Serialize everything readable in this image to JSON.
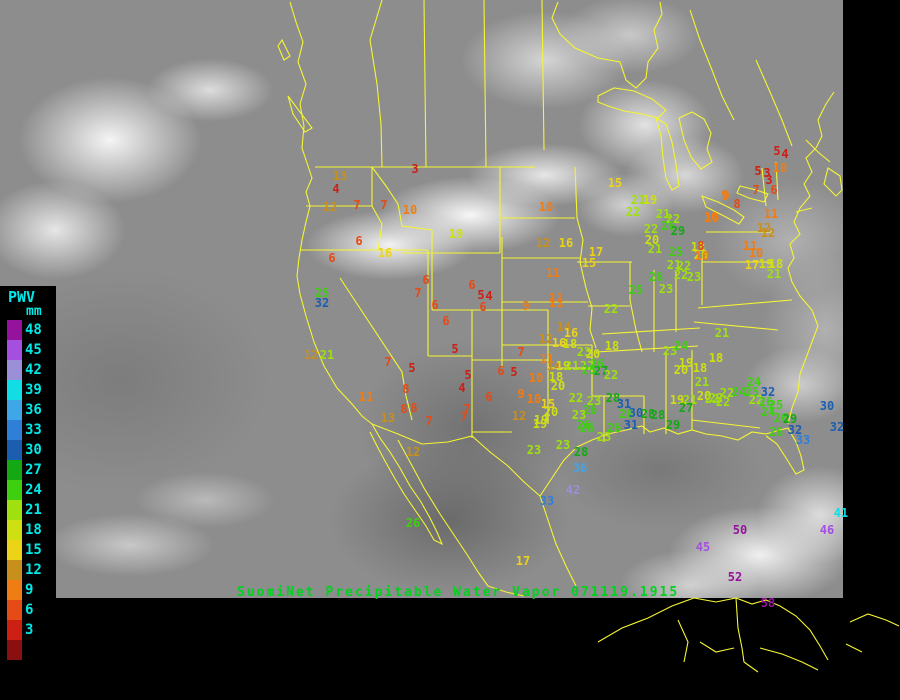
{
  "app": {
    "caption": "SuomiNet Precipitable Water Vapor 071119.1915"
  },
  "colorbar": {
    "title": "PWV",
    "unit": "mm",
    "label_color": "#00e8e8",
    "ticks_top_to_bottom": [
      "48",
      "45",
      "42",
      "39",
      "36",
      "33",
      "30",
      "27",
      "24",
      "21",
      "18",
      "15",
      "12",
      "9",
      "6",
      "3"
    ],
    "colors_low_to_high": [
      "#cc2014",
      "#e44b16",
      "#ef7d15",
      "#c78f1c",
      "#ecd318",
      "#cfe012",
      "#9fe00e",
      "#3ecf10",
      "#14a814",
      "#1b5eb0",
      "#2f7fd6",
      "#3fa6e8",
      "#12dce4",
      "#9b8fd8",
      "#a44fe0",
      "#94129c"
    ],
    "bottom_unlabeled_color": "#8a1010"
  },
  "map": {
    "outline_color": "#f5f532",
    "caption_color": "#00d21e"
  },
  "stations": [
    [
      415,
      169,
      3
    ],
    [
      340,
      176,
      13
    ],
    [
      336,
      189,
      4
    ],
    [
      330,
      207,
      12
    ],
    [
      357,
      205,
      7
    ],
    [
      384,
      205,
      7
    ],
    [
      410,
      210,
      10
    ],
    [
      456,
      234,
      19
    ],
    [
      359,
      241,
      6
    ],
    [
      385,
      253,
      16
    ],
    [
      332,
      258,
      6
    ],
    [
      322,
      293,
      25
    ],
    [
      322,
      303,
      32
    ],
    [
      426,
      280,
      6
    ],
    [
      418,
      293,
      7
    ],
    [
      435,
      305,
      6
    ],
    [
      446,
      321,
      6
    ],
    [
      472,
      285,
      6
    ],
    [
      481,
      295,
      5
    ],
    [
      489,
      296,
      4
    ],
    [
      483,
      307,
      6
    ],
    [
      455,
      349,
      5
    ],
    [
      412,
      368,
      5
    ],
    [
      388,
      362,
      7
    ],
    [
      468,
      375,
      5
    ],
    [
      462,
      388,
      4
    ],
    [
      489,
      397,
      6
    ],
    [
      406,
      389,
      8
    ],
    [
      366,
      397,
      11
    ],
    [
      404,
      409,
      8
    ],
    [
      414,
      408,
      8
    ],
    [
      388,
      418,
      13
    ],
    [
      429,
      421,
      7
    ],
    [
      467,
      409,
      7
    ],
    [
      464,
      417,
      7
    ],
    [
      311,
      355,
      12
    ],
    [
      327,
      355,
      21
    ],
    [
      526,
      306,
      9
    ],
    [
      556,
      303,
      11
    ],
    [
      611,
      309,
      22
    ],
    [
      564,
      327,
      14
    ],
    [
      571,
      333,
      16
    ],
    [
      546,
      339,
      12
    ],
    [
      559,
      343,
      16
    ],
    [
      570,
      344,
      18
    ],
    [
      521,
      352,
      7
    ],
    [
      547,
      359,
      11
    ],
    [
      584,
      352,
      23
    ],
    [
      593,
      354,
      20
    ],
    [
      554,
      366,
      14
    ],
    [
      563,
      366,
      19
    ],
    [
      572,
      366,
      21
    ],
    [
      587,
      366,
      22
    ],
    [
      597,
      364,
      26
    ],
    [
      601,
      371,
      27
    ],
    [
      589,
      370,
      25
    ],
    [
      611,
      375,
      22
    ],
    [
      501,
      371,
      6
    ],
    [
      514,
      372,
      5
    ],
    [
      536,
      378,
      10
    ],
    [
      556,
      377,
      18
    ],
    [
      558,
      386,
      20
    ],
    [
      521,
      394,
      9
    ],
    [
      534,
      399,
      10
    ],
    [
      548,
      404,
      15
    ],
    [
      576,
      398,
      22
    ],
    [
      594,
      401,
      23
    ],
    [
      590,
      410,
      26
    ],
    [
      551,
      412,
      20
    ],
    [
      579,
      415,
      23
    ],
    [
      519,
      416,
      12
    ],
    [
      541,
      420,
      19
    ],
    [
      584,
      425,
      26
    ],
    [
      604,
      437,
      23
    ],
    [
      615,
      183,
      15
    ],
    [
      546,
      207,
      10
    ],
    [
      543,
      243,
      12
    ],
    [
      566,
      243,
      16
    ],
    [
      596,
      252,
      17
    ],
    [
      589,
      263,
      15
    ],
    [
      553,
      273,
      11
    ],
    [
      556,
      298,
      11
    ],
    [
      638,
      200,
      21
    ],
    [
      650,
      200,
      19
    ],
    [
      633,
      212,
      22
    ],
    [
      663,
      214,
      21
    ],
    [
      673,
      219,
      22
    ],
    [
      651,
      229,
      22
    ],
    [
      668,
      226,
      26
    ],
    [
      678,
      231,
      29
    ],
    [
      652,
      240,
      20
    ],
    [
      655,
      249,
      21
    ],
    [
      676,
      252,
      25
    ],
    [
      698,
      247,
      18
    ],
    [
      701,
      255,
      20
    ],
    [
      674,
      265,
      21
    ],
    [
      684,
      266,
      22
    ],
    [
      681,
      275,
      22
    ],
    [
      694,
      277,
      23
    ],
    [
      656,
      277,
      26
    ],
    [
      636,
      290,
      25
    ],
    [
      666,
      289,
      23
    ],
    [
      711,
      217,
      10
    ],
    [
      725,
      195,
      9
    ],
    [
      777,
      151,
      5
    ],
    [
      785,
      154,
      4
    ],
    [
      780,
      168,
      10
    ],
    [
      758,
      171,
      5
    ],
    [
      767,
      173,
      3
    ],
    [
      769,
      180,
      3
    ],
    [
      756,
      190,
      7
    ],
    [
      774,
      190,
      6
    ],
    [
      726,
      196,
      9
    ],
    [
      737,
      204,
      8
    ],
    [
      712,
      218,
      10
    ],
    [
      771,
      214,
      11
    ],
    [
      764,
      228,
      12
    ],
    [
      768,
      233,
      12
    ],
    [
      750,
      246,
      11
    ],
    [
      756,
      253,
      10
    ],
    [
      752,
      265,
      17
    ],
    [
      766,
      264,
      19
    ],
    [
      776,
      264,
      18
    ],
    [
      774,
      274,
      21
    ],
    [
      701,
      246,
      8
    ],
    [
      702,
      256,
      10
    ],
    [
      612,
      346,
      18
    ],
    [
      670,
      351,
      23
    ],
    [
      681,
      346,
      24
    ],
    [
      686,
      363,
      19
    ],
    [
      681,
      370,
      20
    ],
    [
      716,
      358,
      18
    ],
    [
      700,
      368,
      18
    ],
    [
      702,
      382,
      21
    ],
    [
      722,
      333,
      21
    ],
    [
      754,
      382,
      24
    ],
    [
      727,
      393,
      22
    ],
    [
      739,
      392,
      24
    ],
    [
      752,
      392,
      25
    ],
    [
      768,
      392,
      32
    ],
    [
      716,
      398,
      22
    ],
    [
      704,
      396,
      20
    ],
    [
      756,
      400,
      22
    ],
    [
      766,
      402,
      26
    ],
    [
      776,
      405,
      25
    ],
    [
      768,
      412,
      24
    ],
    [
      781,
      418,
      26
    ],
    [
      790,
      419,
      29
    ],
    [
      827,
      406,
      30
    ],
    [
      776,
      432,
      26
    ],
    [
      795,
      430,
      32
    ],
    [
      803,
      440,
      33
    ],
    [
      837,
      427,
      32
    ],
    [
      677,
      400,
      19
    ],
    [
      690,
      400,
      21
    ],
    [
      712,
      399,
      22
    ],
    [
      723,
      402,
      22
    ],
    [
      613,
      398,
      28
    ],
    [
      624,
      404,
      31
    ],
    [
      626,
      414,
      26
    ],
    [
      636,
      413,
      30
    ],
    [
      631,
      425,
      31
    ],
    [
      648,
      414,
      28
    ],
    [
      658,
      415,
      28
    ],
    [
      686,
      408,
      27
    ],
    [
      673,
      425,
      29
    ],
    [
      614,
      428,
      26
    ],
    [
      534,
      450,
      23
    ],
    [
      563,
      445,
      23
    ],
    [
      587,
      428,
      26
    ],
    [
      581,
      452,
      28
    ],
    [
      580,
      468,
      36
    ],
    [
      573,
      490,
      42
    ],
    [
      547,
      501,
      33
    ],
    [
      413,
      452,
      12
    ],
    [
      413,
      523,
      26
    ],
    [
      523,
      561,
      17
    ],
    [
      540,
      424,
      19
    ],
    [
      740,
      530,
      50
    ],
    [
      703,
      547,
      45
    ],
    [
      827,
      530,
      46
    ],
    [
      841,
      513,
      41
    ],
    [
      735,
      577,
      52
    ],
    [
      768,
      603,
      58
    ]
  ]
}
